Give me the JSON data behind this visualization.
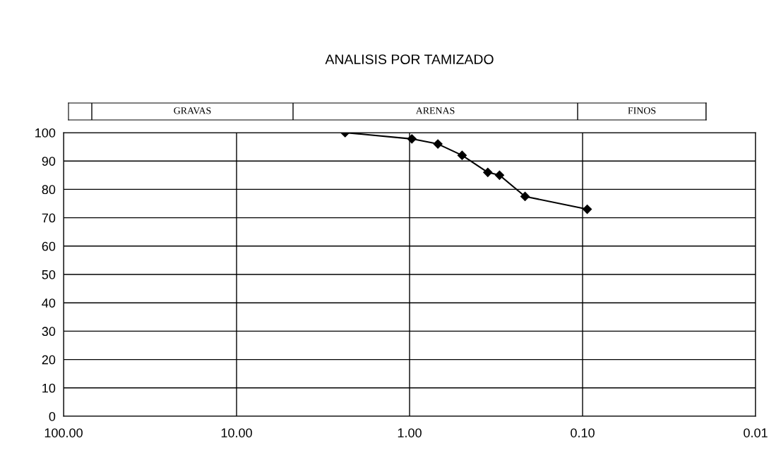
{
  "chart_data": {
    "type": "line",
    "title": "ANALISIS POR TAMIZADO",
    "annotations": [
      "GRAVAS",
      "ARENAS",
      "FINOS"
    ],
    "x": [
      2.36,
      0.97,
      0.686,
      0.497,
      0.353,
      0.302,
      0.215,
      0.094
    ],
    "series": [
      {
        "color": "#000000",
        "values": [
          100,
          97.8,
          96,
          92,
          86,
          85,
          77.5,
          73
        ]
      }
    ],
    "log": "x",
    "xlim": [
      100,
      0.01
    ],
    "xticks": [
      {
        "value": 100,
        "label": "100.00"
      },
      {
        "value": 10,
        "label": "10.00"
      },
      {
        "value": 1,
        "label": "1.00"
      },
      {
        "value": 0.1,
        "label": "0.10"
      },
      {
        "value": 0.01,
        "label": "0.01"
      }
    ],
    "ylim": [
      0,
      100
    ],
    "yticks": [
      0,
      10,
      20,
      30,
      40,
      50,
      60,
      70,
      80,
      90,
      100
    ],
    "grid": true,
    "marker": "diamond",
    "line_style": "solid"
  }
}
